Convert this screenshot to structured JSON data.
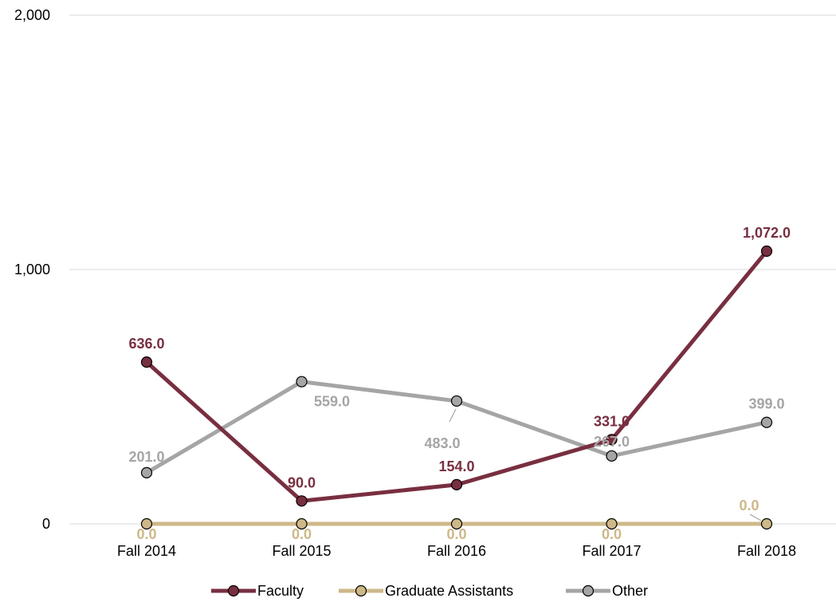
{
  "chart_data": {
    "type": "line",
    "categories": [
      "Fall 2014",
      "Fall 2015",
      "Fall 2016",
      "Fall 2017",
      "Fall 2018"
    ],
    "y_ticks": [
      "0",
      "1,000",
      "2,000"
    ],
    "ylim": [
      0,
      2000
    ],
    "grid": true,
    "legend_position": "bottom",
    "series": [
      {
        "name": "Faculty",
        "values": [
          636,
          90,
          154,
          331,
          1072
        ],
        "labels": [
          "636.0",
          "90.0",
          "154.0",
          "331.0",
          "1,072.0"
        ],
        "color": "#782F40"
      },
      {
        "name": "Graduate Assistants",
        "values": [
          0,
          0,
          0,
          0,
          0
        ],
        "labels": [
          "0.0",
          "0.0",
          "0.0",
          "0.0",
          "0.0"
        ],
        "color": "#CEB888"
      },
      {
        "name": "Other",
        "values": [
          201,
          559,
          483,
          267,
          399
        ],
        "labels": [
          "201.0",
          "559.0",
          "483.0",
          "267.0",
          "399.0"
        ],
        "color": "#A5A5A5"
      }
    ]
  }
}
